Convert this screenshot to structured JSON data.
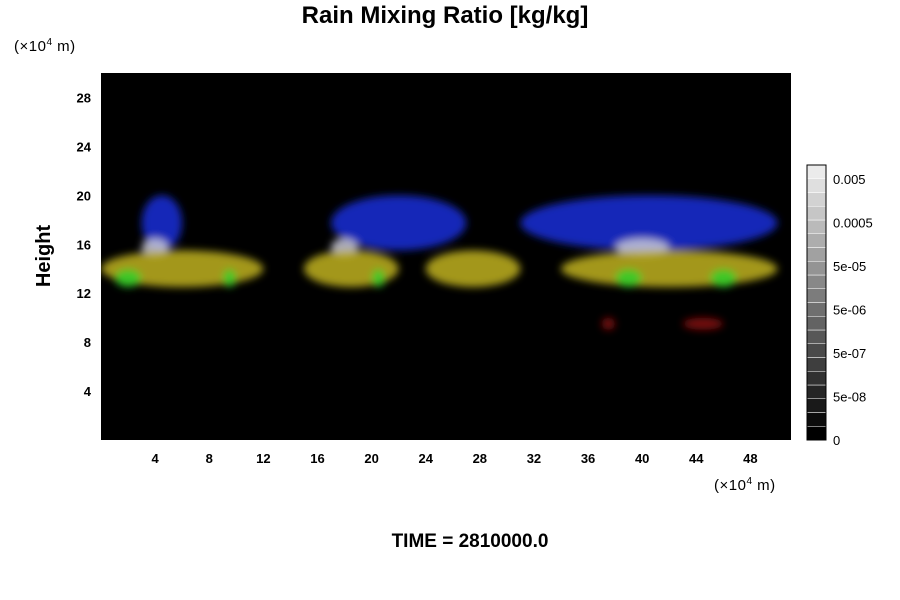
{
  "chart_data": {
    "type": "heatmap",
    "title": "Rain Mixing Ratio [kg/kg]",
    "ylabel": "Height",
    "x_unit": "(×10",
    "x_unit_exp": "4",
    "x_unit_tail": " m)",
    "y_unit": "(×10",
    "y_unit_exp": "4",
    "y_unit_tail": " m)",
    "xlim": [
      0,
      51
    ],
    "ylim": [
      0,
      30
    ],
    "x_ticks": [
      "4",
      "8",
      "12",
      "16",
      "20",
      "24",
      "28",
      "32",
      "36",
      "40",
      "44",
      "48"
    ],
    "y_ticks": [
      "4",
      "8",
      "12",
      "16",
      "20",
      "24",
      "28"
    ],
    "colorbar": {
      "labels": [
        "0.005",
        "0.0005",
        "5e-05",
        "5e-06",
        "5e-07",
        "5e-08",
        "0"
      ]
    },
    "background_color": "#000000",
    "layers": [
      {
        "color": "#1a2fd8",
        "x_ranges": [
          [
            3,
            6
          ],
          [
            17,
            27
          ],
          [
            31,
            50
          ]
        ],
        "y_range": [
          15.5,
          20
        ]
      },
      {
        "color": "#c8c8d8",
        "x_ranges": [
          [
            3,
            5
          ],
          [
            17,
            19
          ],
          [
            38,
            42
          ]
        ],
        "y_range": [
          15,
          16.5
        ]
      },
      {
        "color": "#bfb21f",
        "x_ranges": [
          [
            0,
            12
          ],
          [
            15,
            22
          ],
          [
            24,
            31
          ],
          [
            34,
            50
          ]
        ],
        "y_range": [
          12.5,
          15.5
        ]
      },
      {
        "color": "#2fcf2a",
        "x_ranges": [
          [
            1,
            3
          ],
          [
            9,
            10
          ],
          [
            20,
            21
          ],
          [
            38,
            40
          ],
          [
            45,
            47
          ]
        ],
        "y_range": [
          12.5,
          14
        ]
      },
      {
        "color": "#8a0d0d",
        "x_ranges": [
          [
            37,
            38
          ],
          [
            43,
            46
          ]
        ],
        "y_range": [
          9,
          10
        ]
      }
    ],
    "footer": "TIME = 2810000.0"
  }
}
